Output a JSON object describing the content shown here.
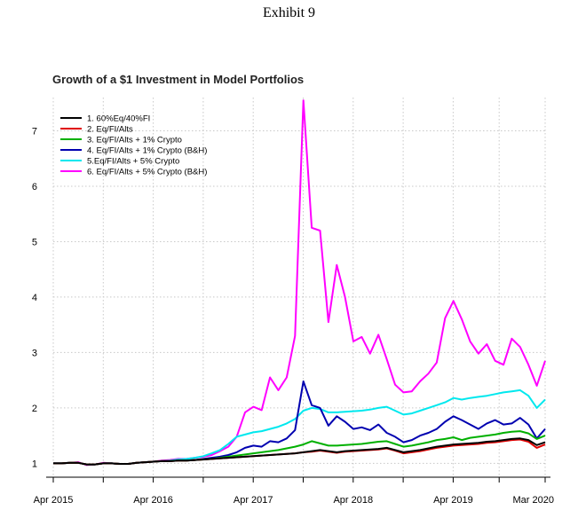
{
  "header": {
    "exhibit": "Exhibit 9"
  },
  "chart_data": {
    "type": "line",
    "title": "Growth of a $1 Investment in Model Portfolios",
    "xlabel": "",
    "ylabel": "",
    "x_start": 2015.25,
    "x_end": 2020.17,
    "xlim": [
      2015.25,
      2020.17
    ],
    "ylim": [
      0.75,
      7.6
    ],
    "y_ticks": [
      1,
      2,
      3,
      4,
      5,
      6,
      7
    ],
    "x_ticks": [
      {
        "label": "Apr 2015",
        "x": 2015.25
      },
      {
        "label": "Apr 2016",
        "x": 2016.25
      },
      {
        "label": "Apr 2017",
        "x": 2017.25
      },
      {
        "label": "Apr 2018",
        "x": 2018.25
      },
      {
        "label": "Apr 2019",
        "x": 2019.25
      },
      {
        "label": "Mar 2020",
        "x": 2020.17
      }
    ],
    "grid": true,
    "legend_position": "top-left",
    "series": [
      {
        "name": "1. 60%Eq/40%FI",
        "color": "#000000",
        "values": [
          1.0,
          1.0,
          1.01,
          1.01,
          0.98,
          0.98,
          1.0,
          1.0,
          0.99,
          0.99,
          1.01,
          1.02,
          1.03,
          1.04,
          1.04,
          1.05,
          1.05,
          1.06,
          1.07,
          1.08,
          1.09,
          1.1,
          1.11,
          1.12,
          1.13,
          1.14,
          1.15,
          1.16,
          1.17,
          1.18,
          1.2,
          1.22,
          1.24,
          1.22,
          1.2,
          1.22,
          1.23,
          1.24,
          1.25,
          1.26,
          1.28,
          1.24,
          1.2,
          1.22,
          1.24,
          1.27,
          1.3,
          1.32,
          1.34,
          1.35,
          1.36,
          1.37,
          1.39,
          1.4,
          1.42,
          1.44,
          1.45,
          1.42,
          1.33,
          1.38
        ]
      },
      {
        "name": "2. Eq/FI/Alts",
        "color": "#e00000",
        "values": [
          1.0,
          1.0,
          1.01,
          1.01,
          0.98,
          0.98,
          1.0,
          1.0,
          0.99,
          0.99,
          1.01,
          1.02,
          1.03,
          1.04,
          1.04,
          1.05,
          1.05,
          1.06,
          1.07,
          1.08,
          1.09,
          1.1,
          1.11,
          1.12,
          1.13,
          1.14,
          1.15,
          1.16,
          1.17,
          1.18,
          1.2,
          1.21,
          1.23,
          1.21,
          1.19,
          1.21,
          1.22,
          1.23,
          1.24,
          1.25,
          1.27,
          1.23,
          1.18,
          1.2,
          1.22,
          1.25,
          1.28,
          1.3,
          1.32,
          1.33,
          1.34,
          1.35,
          1.37,
          1.38,
          1.4,
          1.42,
          1.43,
          1.39,
          1.28,
          1.34
        ]
      },
      {
        "name": "3. Eq/FI/Alts + 1% Crypto",
        "color": "#00b000",
        "values": [
          1.0,
          1.0,
          1.01,
          1.01,
          0.98,
          0.98,
          1.0,
          1.0,
          0.99,
          0.99,
          1.01,
          1.02,
          1.03,
          1.04,
          1.04,
          1.05,
          1.05,
          1.06,
          1.07,
          1.08,
          1.1,
          1.12,
          1.14,
          1.16,
          1.18,
          1.2,
          1.22,
          1.24,
          1.27,
          1.3,
          1.34,
          1.4,
          1.36,
          1.32,
          1.32,
          1.33,
          1.34,
          1.35,
          1.37,
          1.39,
          1.4,
          1.35,
          1.3,
          1.32,
          1.35,
          1.38,
          1.42,
          1.44,
          1.47,
          1.42,
          1.46,
          1.48,
          1.5,
          1.52,
          1.55,
          1.57,
          1.58,
          1.54,
          1.44,
          1.5
        ]
      },
      {
        "name": "4. Eq/FI/Alts + 1% Crypto (B&H)",
        "color": "#0000b0",
        "values": [
          1.0,
          1.0,
          1.01,
          1.01,
          0.98,
          0.98,
          1.0,
          1.0,
          0.99,
          0.99,
          1.01,
          1.02,
          1.03,
          1.04,
          1.04,
          1.05,
          1.05,
          1.06,
          1.08,
          1.1,
          1.12,
          1.15,
          1.2,
          1.28,
          1.32,
          1.3,
          1.4,
          1.38,
          1.45,
          1.6,
          2.48,
          2.05,
          2.0,
          1.68,
          1.85,
          1.75,
          1.62,
          1.65,
          1.6,
          1.7,
          1.55,
          1.48,
          1.38,
          1.42,
          1.5,
          1.55,
          1.62,
          1.75,
          1.85,
          1.78,
          1.7,
          1.62,
          1.72,
          1.78,
          1.7,
          1.72,
          1.82,
          1.7,
          1.45,
          1.62
        ]
      },
      {
        "name": "5.Eq/FI/Alts + 5% Crypto",
        "color": "#00e8ee",
        "values": [
          1.0,
          1.0,
          1.01,
          1.01,
          0.98,
          0.98,
          1.0,
          1.0,
          0.99,
          0.99,
          1.01,
          1.02,
          1.03,
          1.04,
          1.05,
          1.07,
          1.08,
          1.1,
          1.13,
          1.18,
          1.24,
          1.35,
          1.48,
          1.52,
          1.56,
          1.58,
          1.62,
          1.66,
          1.72,
          1.8,
          1.95,
          2.0,
          1.98,
          1.92,
          1.92,
          1.93,
          1.94,
          1.95,
          1.97,
          2.0,
          2.02,
          1.95,
          1.88,
          1.9,
          1.95,
          2.0,
          2.05,
          2.1,
          2.18,
          2.15,
          2.18,
          2.2,
          2.22,
          2.25,
          2.28,
          2.3,
          2.32,
          2.22,
          2.0,
          2.15
        ]
      },
      {
        "name": "6. Eq/FI/Alts + 5% Crypto (B&H)",
        "color": "#ff00ff",
        "values": [
          1.0,
          1.0,
          1.01,
          1.02,
          0.97,
          0.98,
          1.01,
          1.0,
          0.99,
          0.99,
          1.01,
          1.02,
          1.03,
          1.05,
          1.06,
          1.08,
          1.08,
          1.1,
          1.12,
          1.15,
          1.22,
          1.3,
          1.48,
          1.92,
          2.02,
          1.96,
          2.55,
          2.32,
          2.55,
          3.3,
          7.55,
          5.25,
          5.2,
          3.55,
          4.58,
          4.0,
          3.2,
          3.28,
          2.98,
          3.32,
          2.88,
          2.42,
          2.28,
          2.3,
          2.48,
          2.62,
          2.82,
          3.62,
          3.93,
          3.6,
          3.2,
          2.98,
          3.15,
          2.85,
          2.78,
          3.25,
          3.1,
          2.78,
          2.4,
          2.85
        ]
      }
    ]
  }
}
